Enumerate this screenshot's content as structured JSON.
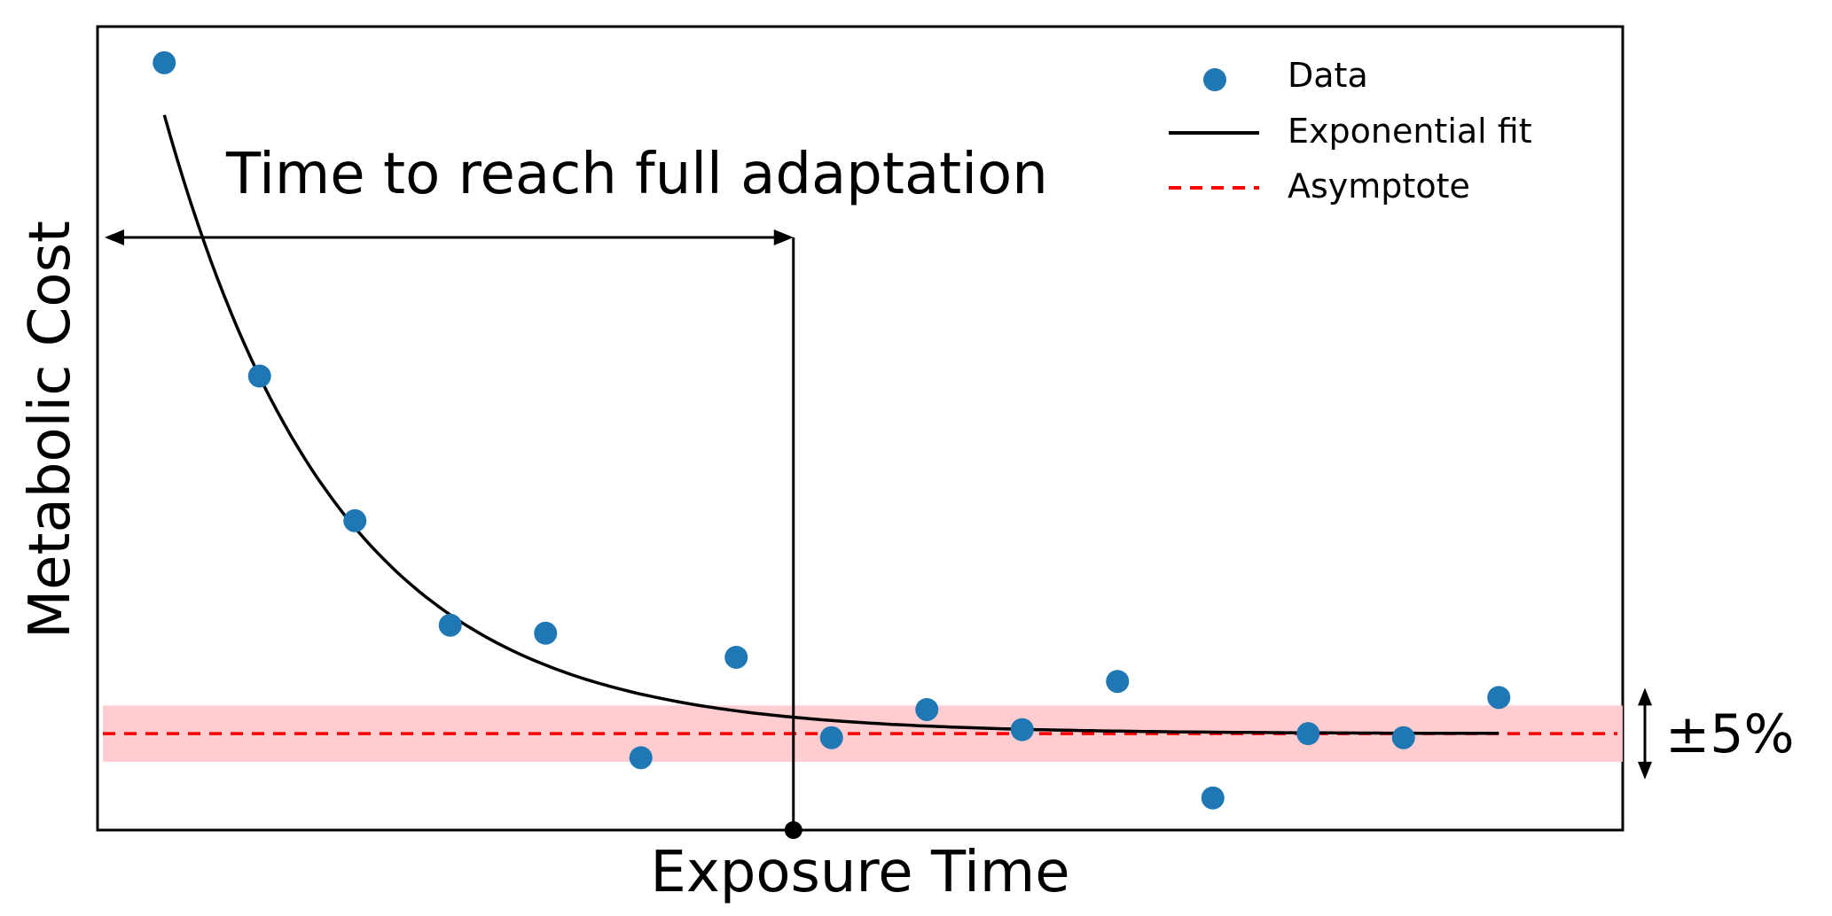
{
  "chart_data": {
    "type": "scatter",
    "title": "",
    "xlabel": "Exposure Time",
    "ylabel": "Metabolic Cost",
    "xlim": [
      0,
      16
    ],
    "ylim": [
      0,
      10
    ],
    "grid": false,
    "legend": {
      "placement": "top-right",
      "entries": [
        {
          "label": "Data",
          "style": "marker"
        },
        {
          "label": "Exponential fit",
          "style": "solid-line"
        },
        {
          "label": "Asymptote",
          "style": "dashed-line"
        }
      ]
    },
    "series": [
      {
        "name": "Data",
        "color": "#1f77b4",
        "x": [
          0.7,
          1.7,
          2.7,
          3.7,
          4.7,
          5.7,
          6.7,
          7.7,
          8.7,
          9.7,
          10.7,
          11.7,
          12.7,
          13.7,
          14.7
        ],
        "y": [
          9.55,
          5.65,
          3.85,
          2.55,
          2.45,
          0.9,
          2.15,
          1.15,
          1.5,
          1.25,
          1.85,
          0.4,
          1.2,
          1.15,
          1.65
        ]
      },
      {
        "name": "Exponential fit",
        "color": "#000000",
        "x_start": 0.7,
        "x_end": 14.7,
        "y_start": 8.9,
        "asymptote": 1.2,
        "rate": 0.55
      },
      {
        "name": "Asymptote",
        "color": "#ff0000",
        "y": 1.2
      }
    ],
    "band": {
      "center": 1.2,
      "half_width": 0.35,
      "color": "#ffc9cc"
    },
    "annotations": {
      "adaptation_label": "Time to reach full adaptation",
      "adaptation_time": 7.3,
      "band_label": "±5%"
    }
  }
}
